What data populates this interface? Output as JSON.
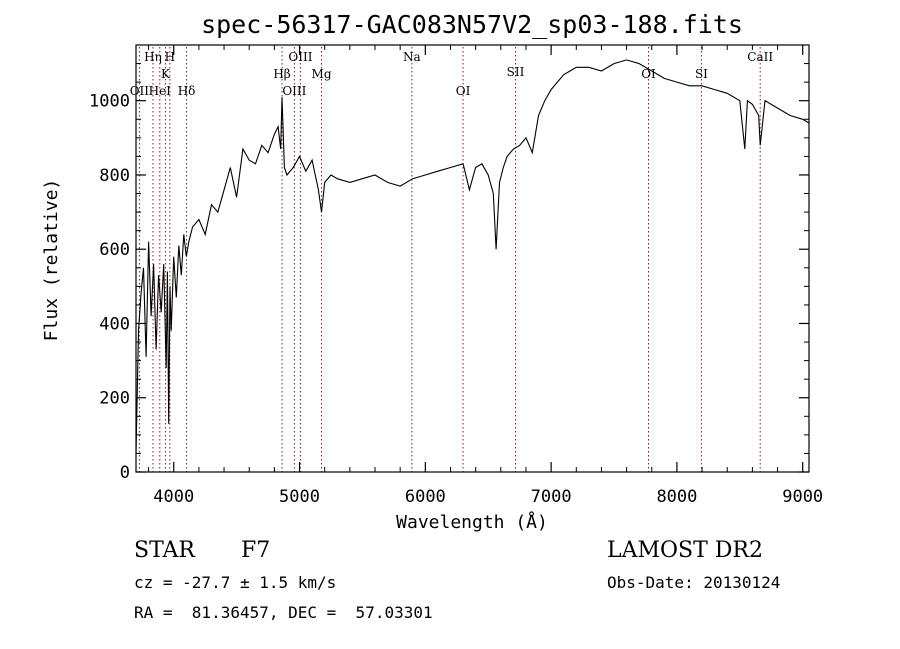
{
  "chart_data": {
    "type": "line",
    "title": "spec-56317-GAC083N57V2_sp03-188.fits",
    "xlabel": "Wavelength (Å)",
    "ylabel": "Flux (relative)",
    "xlim": [
      3700,
      9050
    ],
    "ylim": [
      0,
      1150
    ],
    "xticks": [
      4000,
      5000,
      6000,
      7000,
      8000,
      9000
    ],
    "yticks": [
      0,
      200,
      400,
      600,
      800,
      1000
    ],
    "grid": false,
    "line_color": "#000000",
    "marker_color": "#8b1a1a",
    "lines": [
      {
        "label": "OII",
        "x": 3727,
        "row": 3
      },
      {
        "label": "Hη",
        "x": 3835,
        "row": 1
      },
      {
        "label": "HeI",
        "x": 3889,
        "row": 3
      },
      {
        "label": "K",
        "x": 3934,
        "row": 2
      },
      {
        "label": "H",
        "x": 3969,
        "row": 1
      },
      {
        "label": "Hδ",
        "x": 4102,
        "row": 3
      },
      {
        "label": "Hβ",
        "x": 4861,
        "row": 2
      },
      {
        "label": "OIII",
        "x": 4959,
        "row": 3
      },
      {
        "label": "OIII",
        "x": 5007,
        "row": 1
      },
      {
        "label": "Mg",
        "x": 5175,
        "row": 2
      },
      {
        "label": "Na",
        "x": 5893,
        "row": 1
      },
      {
        "label": "OI",
        "x": 6300,
        "row": 3
      },
      {
        "label": "OI",
        "x": 7774,
        "row": 2
      },
      {
        "label": "SII",
        "x": 6717,
        "row": 0
      },
      {
        "label": "SI",
        "x": 8195,
        "row": 2
      },
      {
        "label": "CaII",
        "x": 8662,
        "row": 1
      }
    ],
    "series": [
      {
        "x": [
          3700,
          3720,
          3740,
          3760,
          3780,
          3800,
          3820,
          3840,
          3860,
          3880,
          3900,
          3920,
          3940,
          3950,
          3960,
          3970,
          3980,
          4000,
          4020,
          4040,
          4060,
          4080,
          4100,
          4120,
          4150,
          4200,
          4250,
          4300,
          4350,
          4400,
          4450,
          4500,
          4550,
          4600,
          4650,
          4700,
          4750,
          4800,
          4830,
          4850,
          4861,
          4880,
          4900,
          4950,
          5000,
          5050,
          5100,
          5150,
          5175,
          5200,
          5250,
          5300,
          5400,
          5500,
          5600,
          5700,
          5800,
          5900,
          6000,
          6100,
          6200,
          6300,
          6350,
          6400,
          6450,
          6500,
          6540,
          6563,
          6590,
          6620,
          6650,
          6700,
          6750,
          6800,
          6850,
          6900,
          6950,
          7000,
          7050,
          7100,
          7150,
          7200,
          7300,
          7400,
          7500,
          7600,
          7700,
          7800,
          7900,
          8000,
          8100,
          8200,
          8300,
          8400,
          8500,
          8540,
          8560,
          8600,
          8650,
          8662,
          8700,
          8800,
          8900,
          9000,
          9050
        ],
        "y": [
          50,
          380,
          480,
          550,
          310,
          620,
          420,
          560,
          330,
          530,
          430,
          560,
          280,
          540,
          130,
          500,
          380,
          580,
          470,
          610,
          530,
          640,
          580,
          620,
          660,
          680,
          640,
          720,
          700,
          760,
          820,
          740,
          870,
          840,
          830,
          880,
          860,
          910,
          930,
          870,
          1010,
          820,
          800,
          820,
          850,
          810,
          840,
          760,
          700,
          780,
          800,
          790,
          780,
          790,
          800,
          780,
          770,
          790,
          800,
          810,
          820,
          830,
          760,
          820,
          830,
          800,
          750,
          600,
          780,
          820,
          850,
          870,
          880,
          900,
          860,
          960,
          1000,
          1030,
          1050,
          1070,
          1080,
          1090,
          1090,
          1080,
          1100,
          1110,
          1100,
          1080,
          1060,
          1050,
          1040,
          1040,
          1030,
          1020,
          1000,
          870,
          1000,
          990,
          960,
          880,
          1000,
          980,
          960,
          950,
          940
        ]
      }
    ]
  },
  "info": {
    "object_class": "STAR",
    "subclass": "F7",
    "survey": "LAMOST DR2",
    "cz": "cz = -27.7 ± 1.5 km/s",
    "obs_date": "Obs-Date: 20130124",
    "coords": "RA =  81.36457, DEC =  57.03301"
  }
}
